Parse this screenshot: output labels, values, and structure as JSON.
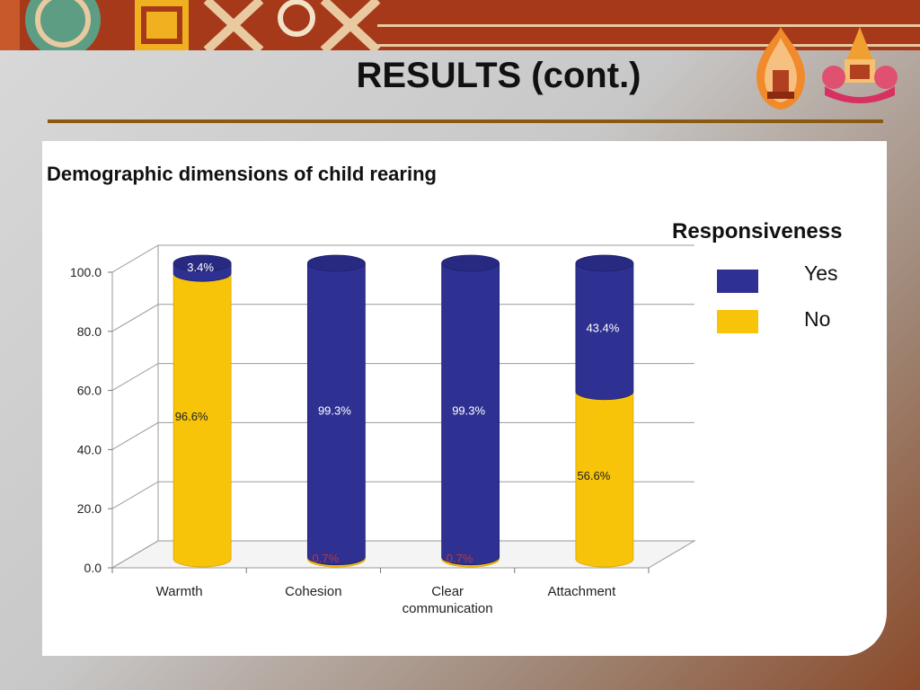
{
  "slide": {
    "title": "RESULTS (cont.)",
    "subtitle": "Demographic dimensions of child rearing"
  },
  "colors": {
    "band": "#a5391a",
    "rule": "#8b5a12",
    "yes": "#2e3192",
    "no": "#f7c40a"
  },
  "legend": {
    "title": "Responsiveness",
    "yes_label": "Yes",
    "no_label": "No"
  },
  "chart_data": {
    "type": "bar",
    "stacked": true,
    "three_d": true,
    "categories": [
      "Warmth",
      "Cohesion",
      "Clear communication",
      "Attachment"
    ],
    "series": [
      {
        "name": "Yes",
        "color": "#2e3192",
        "values": [
          3.4,
          99.3,
          99.3,
          43.4
        ],
        "labels": [
          "3.4%",
          "99.3%",
          "99.3%",
          "43.4%"
        ]
      },
      {
        "name": "No",
        "color": "#f7c40a",
        "values": [
          96.6,
          0.7,
          0.7,
          56.6
        ],
        "labels": [
          "96.6%",
          "0.7%",
          "0.7%",
          "56.6%"
        ]
      }
    ],
    "yticks": [
      "0.0",
      "20.0",
      "40.0",
      "60.0",
      "80.0",
      "100.0"
    ],
    "ylim": [
      0,
      100
    ],
    "grid": true,
    "legend_position": "right"
  }
}
